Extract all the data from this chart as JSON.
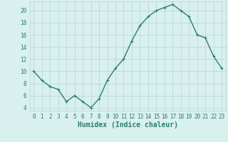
{
  "x": [
    0,
    1,
    2,
    3,
    4,
    5,
    6,
    7,
    8,
    9,
    10,
    11,
    12,
    13,
    14,
    15,
    16,
    17,
    18,
    19,
    20,
    21,
    22,
    23
  ],
  "y": [
    10,
    8.5,
    7.5,
    7,
    5,
    6,
    5,
    4,
    5.5,
    8.5,
    10.5,
    12,
    15,
    17.5,
    19,
    20,
    20.5,
    21,
    20,
    19,
    16,
    15.5,
    12.5,
    10.5
  ],
  "line_color": "#2e7d6e",
  "marker": "+",
  "marker_size": 3,
  "bg_color": "#d8f0ee",
  "grid_color": "#bcd9d6",
  "xlabel": "Humidex (Indice chaleur)",
  "xlim": [
    -0.5,
    23.5
  ],
  "ylim": [
    3.5,
    21.5
  ],
  "yticks": [
    4,
    6,
    8,
    10,
    12,
    14,
    16,
    18,
    20
  ],
  "xticks": [
    0,
    1,
    2,
    3,
    4,
    5,
    6,
    7,
    8,
    9,
    10,
    11,
    12,
    13,
    14,
    15,
    16,
    17,
    18,
    19,
    20,
    21,
    22,
    23
  ],
  "tick_fontsize": 5.5,
  "xlabel_fontsize": 7,
  "line_width": 1.0,
  "marker_edge_width": 0.8
}
